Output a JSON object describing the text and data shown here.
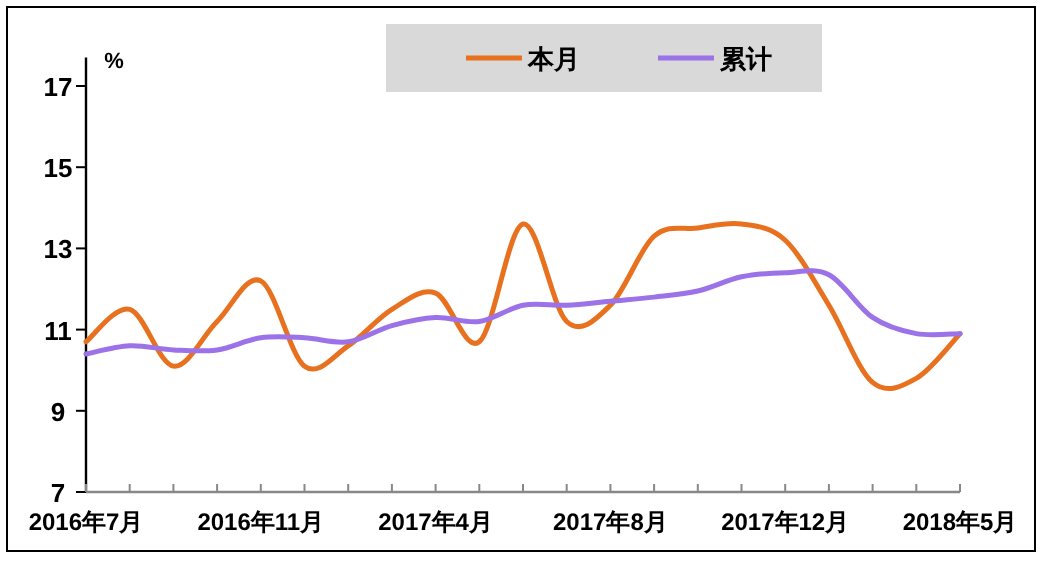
{
  "chart_data": {
    "type": "line",
    "ylabel": "%",
    "categories": [
      "2016年7月",
      null,
      null,
      null,
      "2016年11月",
      null,
      null,
      null,
      "2017年4月",
      null,
      null,
      null,
      "2017年8月",
      null,
      null,
      null,
      "2017年12月",
      null,
      null,
      null,
      "2018年5月"
    ],
    "series": [
      {
        "name": "本月",
        "color": "#e8711f",
        "values": [
          10.7,
          11.5,
          10.1,
          11.2,
          12.2,
          10.1,
          10.6,
          11.5,
          11.9,
          10.7,
          13.6,
          11.2,
          11.6,
          13.3,
          13.5,
          13.6,
          13.2,
          11.6,
          9.7,
          9.8,
          10.9
        ]
      },
      {
        "name": "累计",
        "color": "#9b72e8",
        "values": [
          10.4,
          10.6,
          10.5,
          10.5,
          10.8,
          10.8,
          10.7,
          11.1,
          11.3,
          11.2,
          11.6,
          11.6,
          11.7,
          11.8,
          11.95,
          12.3,
          12.4,
          12.35,
          11.3,
          10.9,
          10.9
        ]
      }
    ],
    "ylim": [
      7,
      17.7
    ],
    "yticks": [
      7,
      9,
      11,
      13,
      15,
      17
    ],
    "legend": "top",
    "grid": false,
    "marker": "none",
    "line_style": "solid"
  }
}
